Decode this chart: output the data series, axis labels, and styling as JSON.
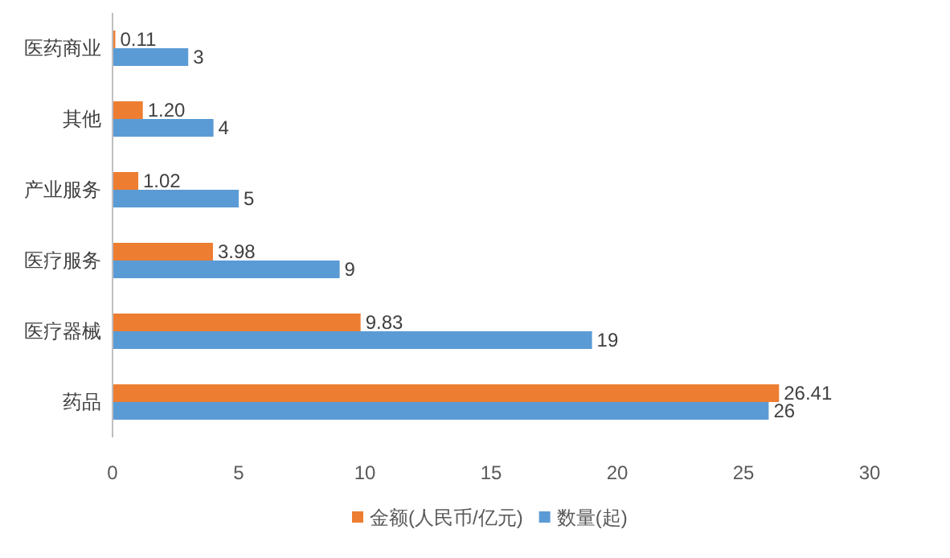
{
  "chart_data": {
    "type": "bar",
    "orientation": "horizontal",
    "categories": [
      "医药商业",
      "其他",
      "产业服务",
      "医疗服务",
      "医疗器械",
      "药品"
    ],
    "series": [
      {
        "name": "金额(人民币/亿元)",
        "color": "#ed7d31",
        "values": [
          0.11,
          1.2,
          1.02,
          3.98,
          9.83,
          26.41
        ],
        "value_labels": [
          "0.11",
          "1.20",
          "1.02",
          "3.98",
          "9.83",
          "26.41"
        ]
      },
      {
        "name": "数量(起)",
        "color": "#5b9bd5",
        "values": [
          3,
          4,
          5,
          9,
          19,
          26
        ],
        "value_labels": [
          "3",
          "4",
          "5",
          "9",
          "19",
          "26"
        ]
      }
    ],
    "xlim": [
      0,
      30
    ],
    "xticks": [
      0,
      5,
      10,
      15,
      20,
      25,
      30
    ],
    "grid": false,
    "legend": "bottom"
  }
}
